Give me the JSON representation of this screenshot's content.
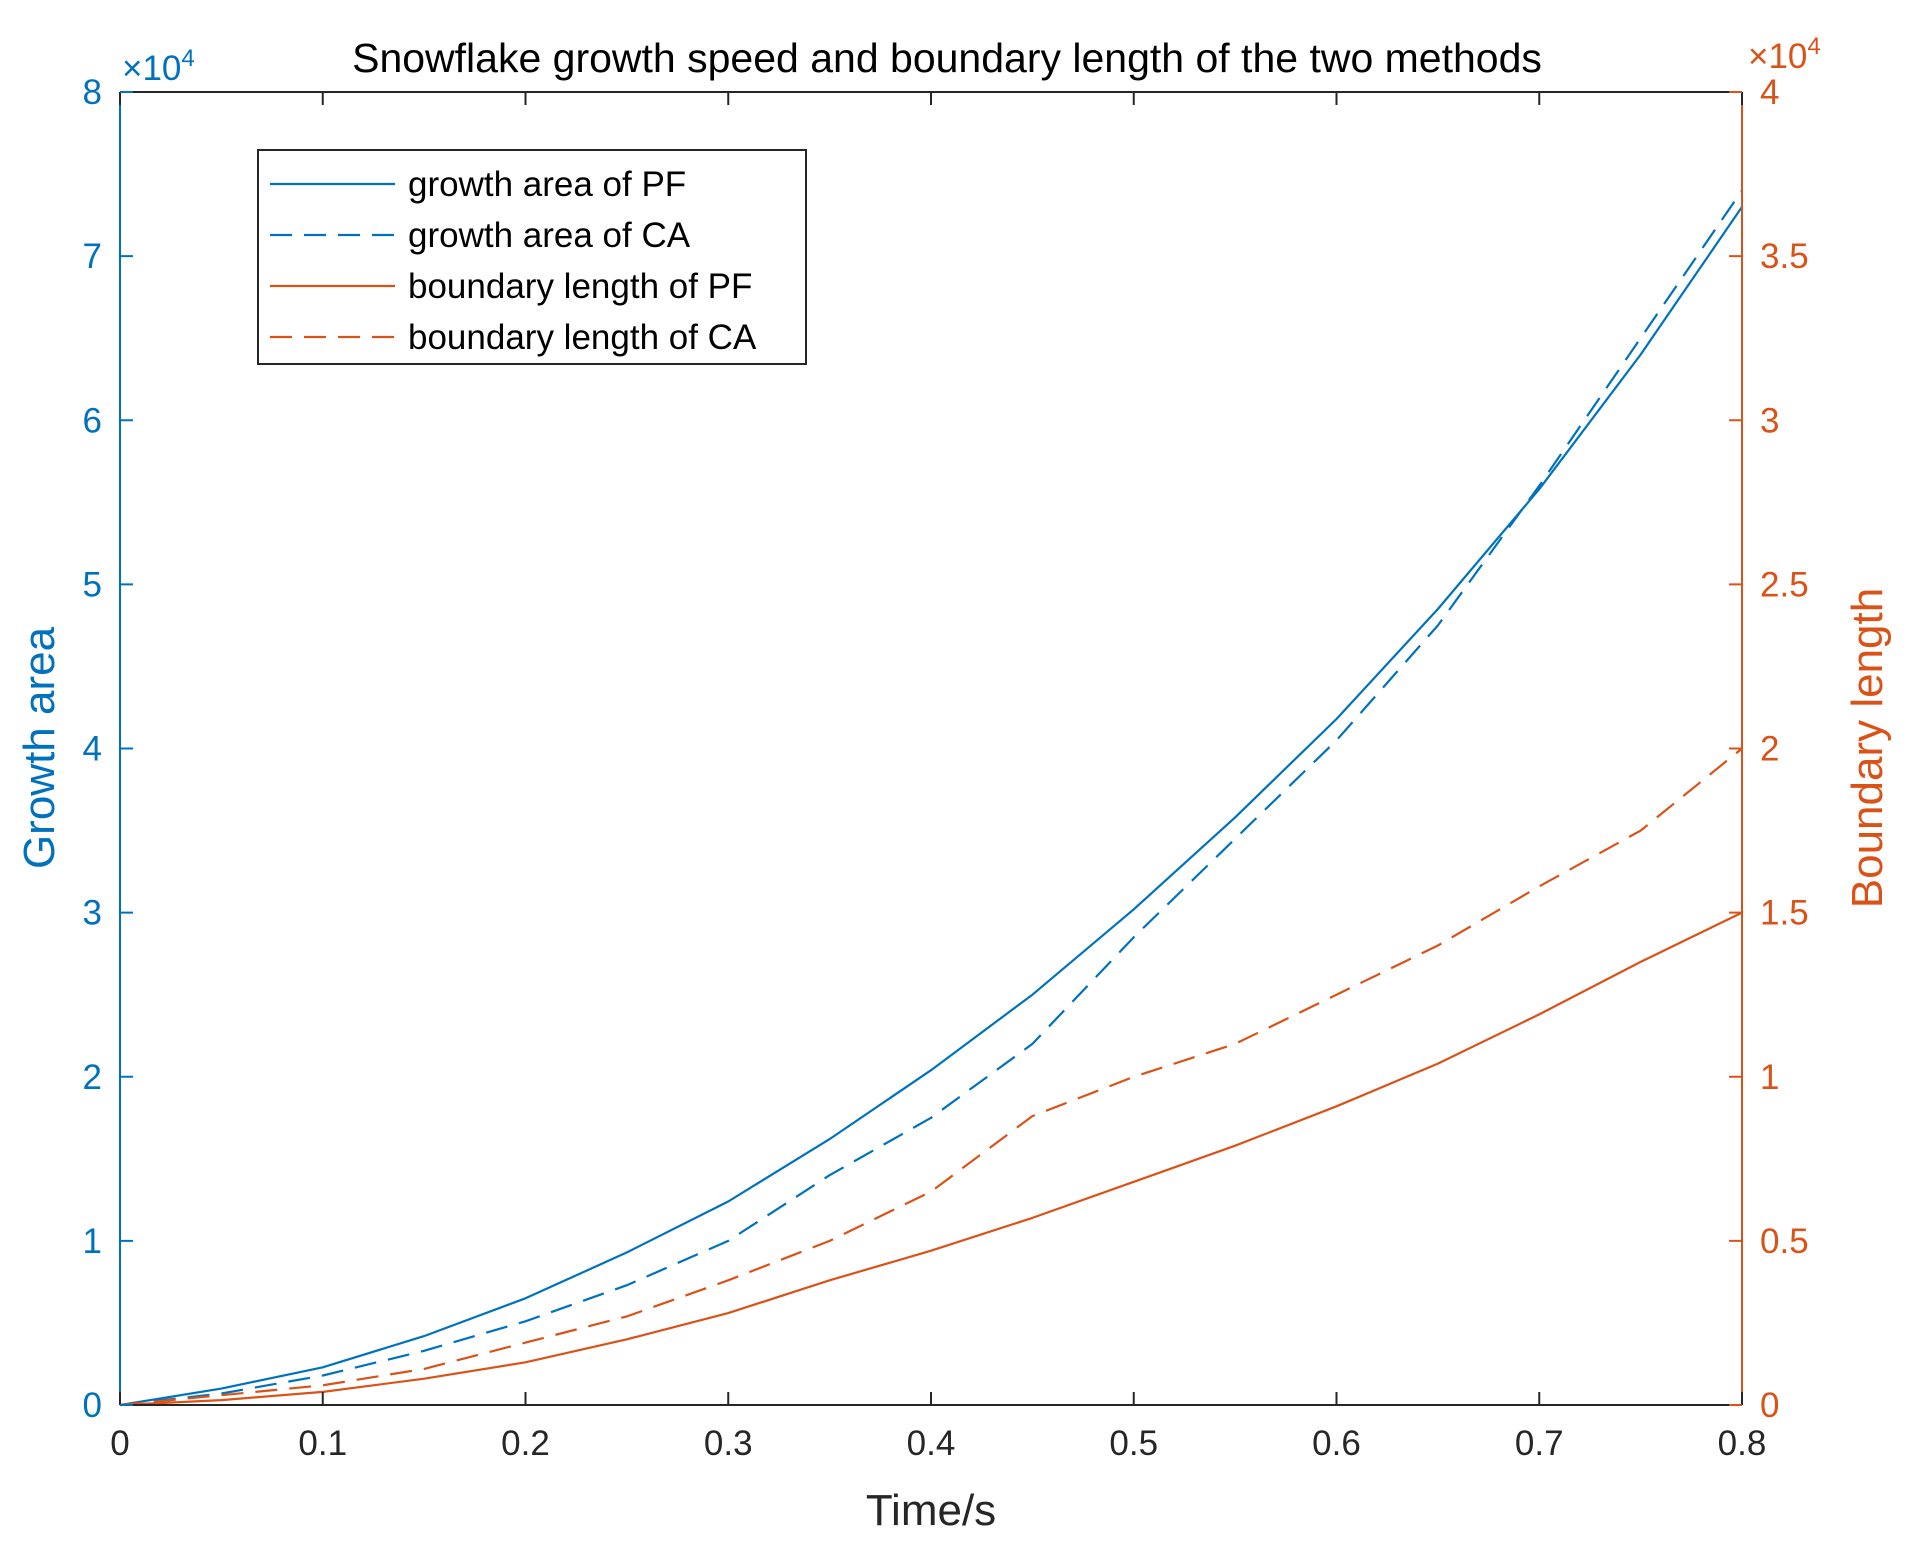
{
  "chart_data": {
    "type": "line",
    "title": "Snowflake growth speed and boundary length of the two methods",
    "xlabel": "Time/s",
    "ylabel_left": "Growth area",
    "ylabel_right": "Boundary length",
    "xlim": [
      0,
      0.8
    ],
    "ylim_left": [
      0,
      80000
    ],
    "ylim_right": [
      0,
      40000
    ],
    "x_ticks": [
      "0",
      "0.1",
      "0.2",
      "0.3",
      "0.4",
      "0.5",
      "0.6",
      "0.7",
      "0.8"
    ],
    "y_left_ticks": [
      "0",
      "1",
      "2",
      "3",
      "4",
      "5",
      "6",
      "7",
      "8"
    ],
    "y_right_ticks": [
      "0",
      "0.5",
      "1",
      "1.5",
      "2",
      "2.5",
      "3",
      "3.5",
      "4"
    ],
    "y_left_multiplier": {
      "base": "×10",
      "exp": "4"
    },
    "y_right_multiplier": {
      "base": "×10",
      "exp": "4"
    },
    "grid": false,
    "legend_position": "top-left",
    "colors": {
      "left_axis": "#0072BD",
      "right_axis": "#D95319",
      "axes": "#262626"
    },
    "x": [
      0,
      0.05,
      0.1,
      0.15,
      0.2,
      0.25,
      0.3,
      0.35,
      0.4,
      0.45,
      0.5,
      0.55,
      0.6,
      0.65,
      0.7,
      0.75,
      0.8
    ],
    "series": [
      {
        "name": "growth area of PF",
        "axis": "left",
        "style": "solid",
        "color": "#0072BD",
        "values": [
          0,
          1000,
          2300,
          4200,
          6500,
          9300,
          12400,
          16200,
          20400,
          25000,
          30200,
          35800,
          41800,
          48500,
          55800,
          64000,
          73000
        ]
      },
      {
        "name": "growth area of CA",
        "axis": "left",
        "style": "dashed",
        "color": "#0072BD",
        "values": [
          0,
          700,
          1800,
          3300,
          5100,
          7300,
          10000,
          14000,
          17500,
          22000,
          28500,
          34500,
          40500,
          47500,
          56000,
          65000,
          74000
        ]
      },
      {
        "name": "boundary length of PF",
        "axis": "right",
        "style": "solid",
        "color": "#D95319",
        "values": [
          0,
          150,
          400,
          800,
          1300,
          2000,
          2800,
          3800,
          4700,
          5700,
          6800,
          7900,
          9100,
          10400,
          11900,
          13500,
          15000
        ]
      },
      {
        "name": "boundary length of CA",
        "axis": "right",
        "style": "dashed",
        "color": "#D95319",
        "values": [
          0,
          300,
          600,
          1100,
          1900,
          2700,
          3800,
          5000,
          6500,
          8800,
          10000,
          11000,
          12500,
          14000,
          15800,
          17500,
          20000
        ]
      }
    ]
  }
}
